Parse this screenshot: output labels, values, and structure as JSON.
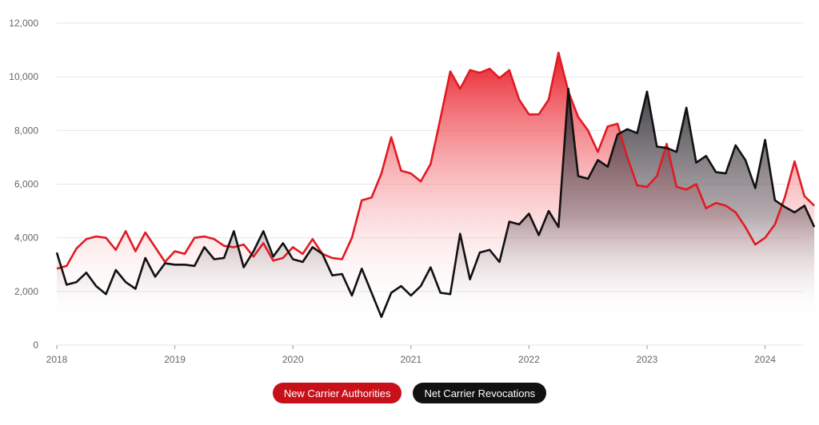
{
  "chart_data": {
    "type": "area",
    "x_start": "2018-01",
    "x_tick_labels": [
      "2018",
      "2019",
      "2020",
      "2021",
      "2022",
      "2023",
      "2024"
    ],
    "ylim": [
      0,
      12000
    ],
    "y_ticks": [
      0,
      2000,
      4000,
      6000,
      8000,
      10000,
      12000
    ],
    "y_tick_labels": [
      "0",
      "2,000",
      "4,000",
      "6,000",
      "8,000",
      "10,000",
      "12,000"
    ],
    "grid": true,
    "legend_position": "bottom-center",
    "series": [
      {
        "name": "New Carrier Authorities",
        "color": "#e01b24",
        "values": [
          2850,
          2950,
          3600,
          3950,
          4050,
          4000,
          3550,
          4250,
          3500,
          4200,
          3650,
          3100,
          3500,
          3400,
          4000,
          4050,
          3950,
          3700,
          3650,
          3750,
          3300,
          3800,
          3150,
          3250,
          3650,
          3400,
          3950,
          3400,
          3250,
          3200,
          4000,
          5400,
          5500,
          6400,
          7750,
          6500,
          6400,
          6100,
          6750,
          8450,
          10200,
          9550,
          10250,
          10150,
          10300,
          9950,
          10250,
          9150,
          8600,
          8600,
          9150,
          10900,
          9450,
          8500,
          8000,
          7200,
          8150,
          8250,
          7000,
          5950,
          5900,
          6300,
          7500,
          5900,
          5800,
          6000,
          5100,
          5300,
          5200,
          4950,
          4400,
          3750,
          4000,
          4500,
          5500,
          6850,
          5550,
          5200
        ]
      },
      {
        "name": "Net Carrier Revocations",
        "color": "#111111",
        "values": [
          3450,
          2250,
          2350,
          2700,
          2200,
          1900,
          2800,
          2350,
          2100,
          3250,
          2550,
          3050,
          3000,
          3000,
          2950,
          3650,
          3200,
          3250,
          4250,
          2900,
          3500,
          4250,
          3300,
          3800,
          3200,
          3100,
          3650,
          3400,
          2600,
          2650,
          1850,
          2850,
          1950,
          1050,
          1950,
          2200,
          1850,
          2200,
          2900,
          1950,
          1900,
          4150,
          2450,
          3450,
          3550,
          3100,
          4600,
          4500,
          4900,
          4100,
          5000,
          4400,
          9550,
          6300,
          6200,
          6900,
          6650,
          7850,
          8050,
          7900,
          9450,
          7400,
          7350,
          7200,
          8850,
          6800,
          7050,
          6450,
          6400,
          7450,
          6900,
          5850,
          7650,
          5400,
          5150,
          4950,
          5200,
          4400
        ]
      }
    ]
  }
}
